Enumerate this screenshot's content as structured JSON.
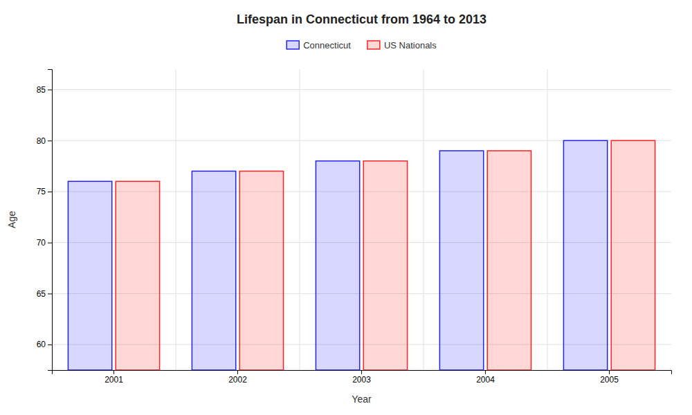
{
  "chart_data": {
    "type": "bar",
    "title": "Lifespan in Connecticut from 1964 to 2013",
    "x_label": "Year",
    "y_label": "Age",
    "categories": [
      "2001",
      "2002",
      "2003",
      "2004",
      "2005"
    ],
    "series": [
      {
        "name": "Connecticut",
        "color": "#2222ff",
        "values": [
          76,
          77,
          78,
          79,
          80
        ]
      },
      {
        "name": "US Nationals",
        "color": "#ff2222",
        "values": [
          76,
          77,
          78,
          79,
          80
        ]
      }
    ],
    "ylim": [
      57.5,
      87
    ],
    "yticks": [
      60,
      65,
      70,
      75,
      80,
      85
    ],
    "grid": true,
    "legend": "top"
  }
}
